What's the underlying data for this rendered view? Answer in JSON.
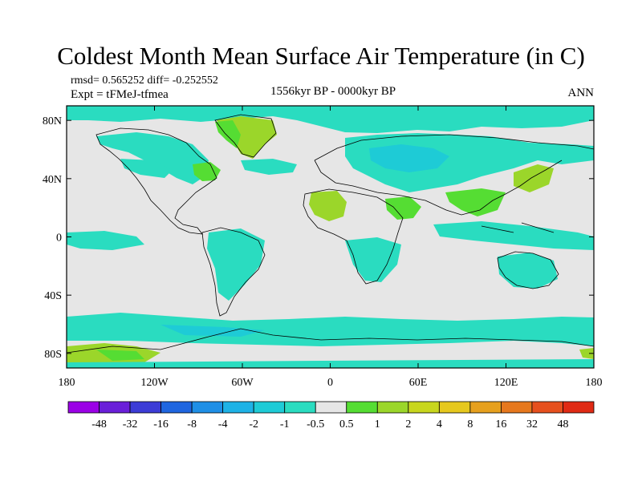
{
  "title": "Coldest Month Mean Surface Air Temperature (in C)",
  "stats_line": "rmsd= 0.565252 diff= -0.252552",
  "experiment_line": "Expt = tFMeJ-tfmea",
  "period": "1556kyr BP - 0000kyr BP",
  "season": "ANN",
  "map": {
    "projection": "cylindrical equidistant",
    "lon_range": [
      -180,
      180
    ],
    "lat_range": [
      -90,
      90
    ],
    "lat_ticks": [
      {
        "value": 80,
        "label": "80N"
      },
      {
        "value": 40,
        "label": "40N"
      },
      {
        "value": 0,
        "label": "0"
      },
      {
        "value": -40,
        "label": "40S"
      },
      {
        "value": -80,
        "label": "80S"
      }
    ],
    "lon_ticks": [
      {
        "value": -180,
        "label": "180"
      },
      {
        "value": -120,
        "label": "120W"
      },
      {
        "value": -60,
        "label": "60W"
      },
      {
        "value": 0,
        "label": "0"
      },
      {
        "value": 60,
        "label": "60E"
      },
      {
        "value": 120,
        "label": "120E"
      },
      {
        "value": 180,
        "label": "180"
      }
    ],
    "background_color": "#e6e6e6",
    "coastline_color": "#000000"
  },
  "colorbar": {
    "colors": [
      "#9b00e6",
      "#6a1fd9",
      "#3c3cd6",
      "#1f66e0",
      "#1f8fe6",
      "#1eb2e6",
      "#1ecbd6",
      "#2adcc0",
      "#e6e6e6",
      "#55dd33",
      "#9bd62a",
      "#c8d61e",
      "#e6c81e",
      "#e6a01e",
      "#e6781e",
      "#e6501e",
      "#e02a14"
    ],
    "labels": [
      "-48",
      "-32",
      "-16",
      "-8",
      "-4",
      "-2",
      "-1",
      "-0.5",
      "0.5",
      "1",
      "2",
      "4",
      "8",
      "16",
      "32",
      "48"
    ]
  }
}
